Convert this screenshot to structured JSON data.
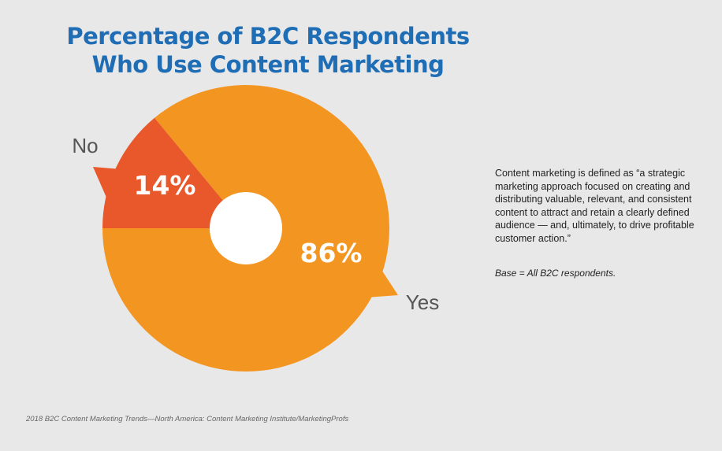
{
  "chart_data": {
    "type": "pie",
    "title": [
      "Percentage of B2C Respondents",
      "Who Use Content Marketing"
    ],
    "slices": [
      {
        "label": "Yes",
        "value": 86,
        "value_label": "86%",
        "color": "#f39621"
      },
      {
        "label": "No",
        "value": 14,
        "value_label": "14%",
        "color": "#e8582a"
      }
    ],
    "donut_hole": true,
    "hole_color": "#ffffff"
  },
  "definition_text": "Content marketing is defined as “a strategic marketing approach focused on creating and distributing valuable, relevant, and consistent content to attract and retain a clearly defined audience — and, ultimately, to drive profitable customer action.”",
  "base_note": "Base = All B2C respondents.",
  "source": "2018 B2C Content Marketing Trends—North America: Content Marketing Institute/MarketingProfs",
  "colors": {
    "title": "#1f6db5",
    "label_text": "#555555",
    "value_text": "#ffffff"
  }
}
